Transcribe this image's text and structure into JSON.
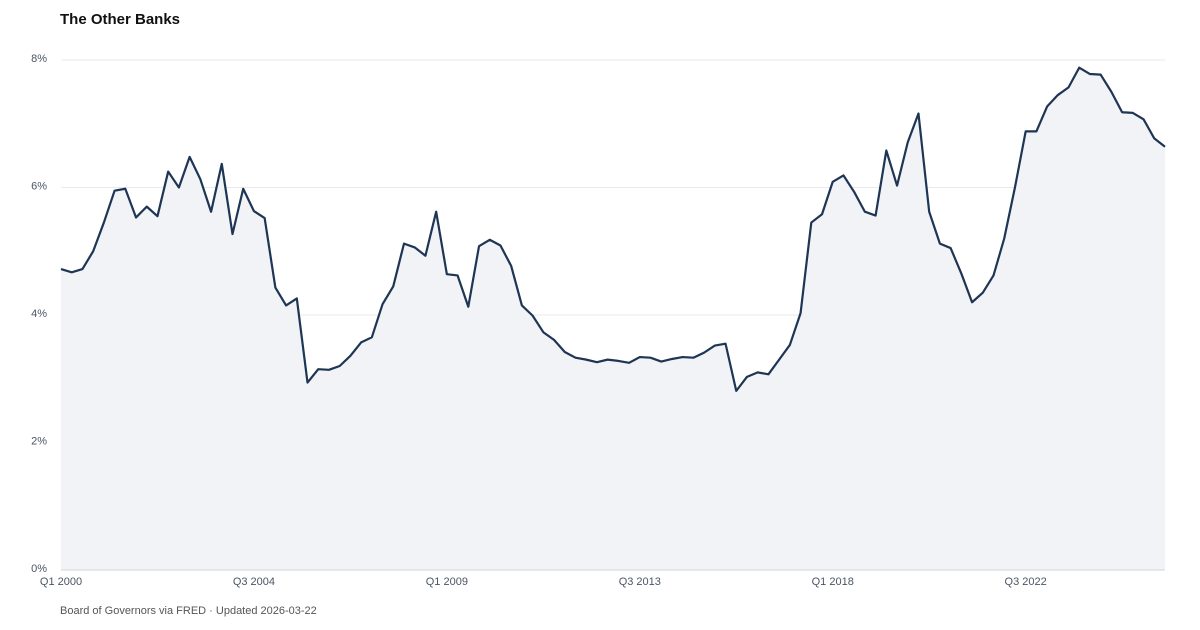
{
  "chart_data": {
    "type": "line",
    "title": "The Other Banks",
    "footer": "Board of Governors via FRED · Updated 2026-03-22",
    "categories": [
      "Q1 2000",
      null,
      null,
      null,
      null,
      null,
      null,
      null,
      null,
      null,
      null,
      null,
      null,
      null,
      null,
      null,
      null,
      null,
      "Q3 2004",
      null,
      null,
      null,
      null,
      null,
      null,
      null,
      null,
      null,
      null,
      null,
      null,
      null,
      null,
      null,
      null,
      null,
      "Q1 2009",
      null,
      null,
      null,
      null,
      null,
      null,
      null,
      null,
      null,
      null,
      null,
      null,
      null,
      null,
      null,
      null,
      null,
      "Q3 2013",
      null,
      null,
      null,
      null,
      null,
      null,
      null,
      null,
      null,
      null,
      null,
      null,
      null,
      null,
      null,
      null,
      null,
      "Q1 2018",
      null,
      null,
      null,
      null,
      null,
      null,
      null,
      null,
      null,
      null,
      null,
      null,
      null,
      null,
      null,
      null,
      null,
      "Q3 2022",
      null,
      null,
      null,
      null,
      null,
      null,
      null,
      null,
      null,
      null,
      null,
      null,
      null
    ],
    "values": [
      4.72,
      4.67,
      4.72,
      5.0,
      5.45,
      5.95,
      5.98,
      5.53,
      5.7,
      5.55,
      6.25,
      6.0,
      6.48,
      6.13,
      5.62,
      6.37,
      5.27,
      5.98,
      5.63,
      5.52,
      4.43,
      4.15,
      4.26,
      2.94,
      3.15,
      3.14,
      3.2,
      3.36,
      3.57,
      3.65,
      4.17,
      4.45,
      5.12,
      5.06,
      4.93,
      5.62,
      4.64,
      4.62,
      4.13,
      5.08,
      5.18,
      5.09,
      4.77,
      4.15,
      3.99,
      3.73,
      3.61,
      3.42,
      3.33,
      3.3,
      3.26,
      3.3,
      3.28,
      3.25,
      3.34,
      3.33,
      3.27,
      3.31,
      3.34,
      3.33,
      3.41,
      3.52,
      3.55,
      2.81,
      3.03,
      3.1,
      3.07,
      3.3,
      3.53,
      4.03,
      5.45,
      5.58,
      6.09,
      6.19,
      5.93,
      5.62,
      5.56,
      6.58,
      6.03,
      6.71,
      7.16,
      5.62,
      5.12,
      5.05,
      4.65,
      4.2,
      4.35,
      4.62,
      5.2,
      6.0,
      6.88,
      6.88,
      7.27,
      7.45,
      7.57,
      7.88,
      7.78,
      7.77,
      7.5,
      7.18,
      7.17,
      7.07,
      6.77,
      6.64
    ],
    "color": "#1e3554",
    "area_color": "#f1f3f6",
    "ylim": [
      0,
      8
    ],
    "yticks": [
      {
        "value": 0,
        "label": "0%"
      },
      {
        "value": 2,
        "label": "2%"
      },
      {
        "value": 4,
        "label": "4%"
      },
      {
        "value": 6,
        "label": "6%"
      },
      {
        "value": 8,
        "label": "8%"
      }
    ],
    "grid": true
  }
}
